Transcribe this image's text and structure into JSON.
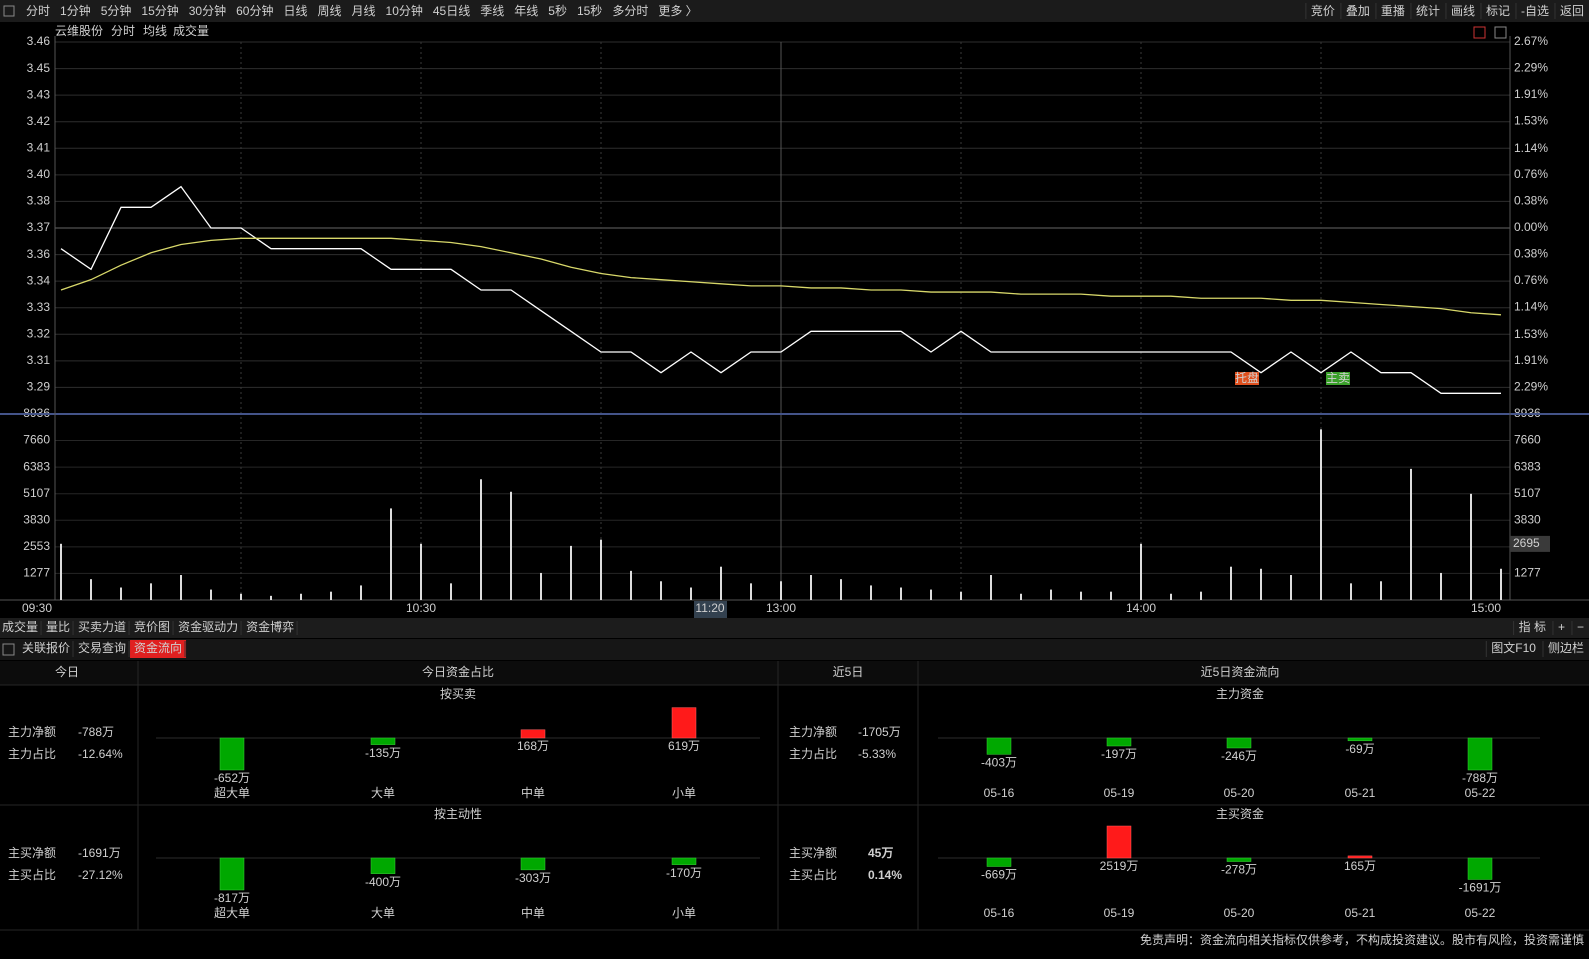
{
  "toolbar": {
    "left": [
      "分时",
      "1分钟",
      "5分钟",
      "15分钟",
      "30分钟",
      "60分钟",
      "日线",
      "周线",
      "月线",
      "10分钟",
      "45日线",
      "季线",
      "年线",
      "5秒",
      "15秒",
      "多分时",
      "更多 〉"
    ],
    "right": [
      "竞价",
      "叠加",
      "重播",
      "统计",
      "画线",
      "标记",
      "-自选",
      "返回"
    ]
  },
  "chart_data": [
    {
      "type": "line",
      "title": "云维股份",
      "subtitle": "分时",
      "categories": [
        "09:30",
        null,
        null,
        null,
        null,
        null,
        null,
        null,
        null,
        null,
        null,
        null,
        "10:30",
        null,
        null,
        null,
        null,
        null,
        null,
        null,
        null,
        null,
        null,
        null,
        "13:00",
        null,
        null,
        null,
        null,
        null,
        null,
        null,
        null,
        null,
        null,
        null,
        "14:00",
        null,
        null,
        null,
        null,
        null,
        null,
        null,
        null,
        null,
        null,
        null,
        "15:00"
      ],
      "series": [
        {
          "color": "#ffffff",
          "values": [
            3.36,
            3.35,
            3.38,
            3.38,
            3.39,
            3.37,
            3.37,
            3.36,
            3.36,
            3.36,
            3.36,
            3.35,
            3.35,
            3.35,
            3.34,
            3.34,
            3.33,
            3.32,
            3.31,
            3.31,
            3.3,
            3.31,
            3.3,
            3.31,
            3.31,
            3.32,
            3.32,
            3.32,
            3.32,
            3.31,
            3.32,
            3.31,
            3.31,
            3.31,
            3.31,
            3.31,
            3.31,
            3.31,
            3.31,
            3.31,
            3.3,
            3.31,
            3.3,
            3.31,
            3.3,
            3.3,
            3.29,
            3.29,
            3.29
          ]
        },
        {
          "name": "均线",
          "color": "#d8d86a",
          "values": [
            3.34,
            3.345,
            3.352,
            3.358,
            3.362,
            3.364,
            3.365,
            3.365,
            3.365,
            3.365,
            3.365,
            3.365,
            3.364,
            3.363,
            3.361,
            3.358,
            3.355,
            3.351,
            3.348,
            3.346,
            3.345,
            3.344,
            3.343,
            3.342,
            3.342,
            3.341,
            3.341,
            3.34,
            3.34,
            3.339,
            3.339,
            3.339,
            3.338,
            3.338,
            3.338,
            3.337,
            3.337,
            3.337,
            3.336,
            3.336,
            3.336,
            3.335,
            3.335,
            3.334,
            3.333,
            3.332,
            3.331,
            3.329,
            3.328
          ]
        }
      ],
      "ylim": [
        3.28,
        3.46
      ],
      "yticks": [
        3.46,
        {
          "value": 3.4471,
          "label": "3.45"
        },
        {
          "value": 3.4343,
          "label": "3.43"
        },
        {
          "value": 3.4214,
          "label": "3.42"
        },
        {
          "value": 3.4086,
          "label": "3.41"
        },
        {
          "value": 3.3957,
          "label": "3.40"
        },
        {
          "value": 3.3829,
          "label": "3.38"
        },
        3.37,
        {
          "value": 3.3571,
          "label": "3.36"
        },
        {
          "value": 3.3443,
          "label": "3.34"
        },
        {
          "value": 3.3314,
          "label": "3.33"
        },
        {
          "value": 3.3186,
          "label": "3.32"
        },
        {
          "value": 3.3057,
          "label": "3.31"
        },
        {
          "value": 3.2929,
          "label": "3.29"
        }
      ],
      "y2lim": [
        -2.67,
        2.67
      ],
      "y2ticks": [
        {
          "value": 2.67,
          "label": "2.67%"
        },
        {
          "value": 2.29,
          "label": "2.29%"
        },
        {
          "value": 1.91,
          "label": "1.91%"
        },
        {
          "value": 1.53,
          "label": "1.53%"
        },
        {
          "value": 1.14,
          "label": "1.14%"
        },
        {
          "value": 0.76,
          "label": "0.76%"
        },
        {
          "value": 0.38,
          "label": "0.38%"
        },
        {
          "value": 0,
          "label": "0.00%"
        },
        {
          "value": -0.38,
          "label": "0.38%"
        },
        {
          "value": -0.76,
          "label": "0.76%"
        },
        {
          "value": -1.14,
          "label": "1.14%"
        },
        {
          "value": -1.53,
          "label": "1.53%"
        },
        {
          "value": -1.91,
          "label": "1.91%"
        },
        {
          "value": -2.29,
          "label": "2.29%"
        }
      ],
      "volume": {
        "name": "成交量",
        "color": "#dddddd",
        "values": [
          2700,
          1000,
          600,
          800,
          1200,
          500,
          300,
          200,
          300,
          400,
          700,
          4400,
          2700,
          800,
          5800,
          5200,
          1300,
          2600,
          2900,
          1400,
          900,
          600,
          1600,
          800,
          900,
          1200,
          1000,
          700,
          600,
          500,
          400,
          1200,
          300,
          500,
          400,
          400,
          2700,
          300,
          400,
          1600,
          1500,
          1200,
          8200,
          800,
          900,
          6300,
          1300,
          5100,
          1500
        ],
        "ylim": [
          0,
          8936
        ],
        "yticks": [
          1277,
          2553,
          3830,
          5107,
          6383,
          7660,
          8936
        ]
      },
      "cursor": {
        "label": "11:20",
        "volume": 2695
      },
      "annotations": [
        "托盘",
        "主卖"
      ],
      "grid": true
    },
    {
      "type": "bar",
      "title": "按买卖",
      "categories": [
        "超大单",
        "大单",
        "中单",
        "小单"
      ],
      "values": [
        -652,
        -135,
        168,
        619
      ],
      "value_labels": [
        "-652万",
        "-135万",
        "168万",
        "619万"
      ],
      "color_up": "#ff1a1a",
      "color_down": "#00a800"
    },
    {
      "type": "bar",
      "title": "按主动性",
      "categories": [
        "超大单",
        "大单",
        "中单",
        "小单"
      ],
      "values": [
        -817,
        -400,
        -303,
        -170
      ],
      "value_labels": [
        "-817万",
        "-400万",
        "-303万",
        "-170万"
      ],
      "color_up": "#ff1a1a",
      "color_down": "#00a800"
    },
    {
      "type": "bar",
      "title": "主力资金",
      "categories": [
        "05-16",
        "05-19",
        "05-20",
        "05-21",
        "05-22"
      ],
      "values": [
        -403,
        -197,
        -246,
        -69,
        -788
      ],
      "value_labels": [
        "-403万",
        "-197万",
        "-246万",
        "-69万",
        "-788万"
      ],
      "color_up": "#ff1a1a",
      "color_down": "#00a800"
    },
    {
      "type": "bar",
      "title": "主买资金",
      "categories": [
        "05-16",
        "05-19",
        "05-20",
        "05-21",
        "05-22"
      ],
      "values": [
        -669,
        2519,
        -278,
        165,
        -1691
      ],
      "value_labels": [
        "-669万",
        "2519万",
        "-278万",
        "165万",
        "-1691万"
      ],
      "color_up": "#ff1a1a",
      "color_down": "#00a800"
    }
  ],
  "tabs1": {
    "left": [
      "成交量",
      "量比",
      "买卖力道",
      "竞价图",
      "资金驱动力",
      "资金博弈"
    ],
    "right": [
      "指 标",
      "+",
      "−"
    ]
  },
  "tabs2": {
    "left": [
      "关联报价",
      "交易查询",
      "资金流向"
    ],
    "right": [
      "图文F10",
      "侧边栏"
    ]
  },
  "panel_titles": [
    "今日",
    "今日资金占比",
    "近5日",
    "近5日资金流向"
  ],
  "stats": {
    "today": [
      [
        "主力净额",
        "-788万"
      ],
      [
        "主力占比",
        "-12.64%"
      ],
      [
        "主买净额",
        "-1691万"
      ],
      [
        "主买占比",
        "-27.12%"
      ]
    ],
    "five_day": [
      [
        "主力净额",
        "-1705万"
      ],
      [
        "主力占比",
        "-5.33%"
      ],
      [
        "主买净额",
        "45万"
      ],
      [
        "主买占比",
        "0.14%"
      ]
    ]
  },
  "disclaimer": "免责声明：资金流向相关指标仅供参考，不构成投资建议。股市有风险，投资需谨慎"
}
